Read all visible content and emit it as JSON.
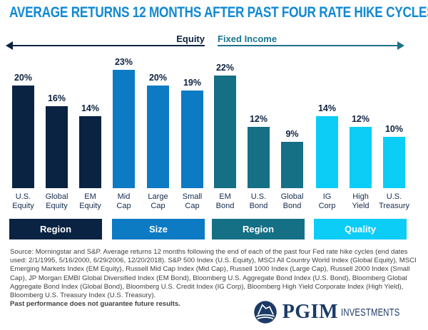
{
  "header": {
    "title": "AVERAGE RETURNS 12 MONTHS AFTER PAST FOUR RATE HIKE CYCLES ENDED",
    "title_color": "#1089d2"
  },
  "sections": {
    "equity": {
      "label": "Equity",
      "color": "#0b2342",
      "arrow_direction": "left"
    },
    "fixed_income": {
      "label": "Fixed Income",
      "color": "#1a7693",
      "arrow_direction": "right"
    }
  },
  "chart_data": {
    "type": "bar",
    "title": "AVERAGE RETURNS 12 MONTHS AFTER PAST FOUR RATE HIKE CYCLES ENDED",
    "unit": "%",
    "ylim": [
      0,
      24
    ],
    "grid": false,
    "value_labels_position": "above-bars",
    "categories": [
      "U.S. Equity",
      "Global Equity",
      "EM Equity",
      "Mid Cap",
      "Large Cap",
      "Small Cap",
      "EM Bond",
      "U.S. Bond",
      "Global Bond",
      "IG Corp",
      "High Yield",
      "U.S. Treasury"
    ],
    "values": [
      20,
      16,
      14,
      23,
      20,
      19,
      22,
      12,
      9,
      14,
      12,
      10
    ],
    "groups": [
      {
        "section": "Equity",
        "ribbon": "Region",
        "color": "#0b2342",
        "bars": [
          {
            "label": "U.S. Equity",
            "label_lines": [
              "U.S.",
              "Equity"
            ],
            "value": 20
          },
          {
            "label": "Global Equity",
            "label_lines": [
              "Global",
              "Equity"
            ],
            "value": 16
          },
          {
            "label": "EM Equity",
            "label_lines": [
              "EM",
              "Equity"
            ],
            "value": 14
          }
        ]
      },
      {
        "section": "Equity",
        "ribbon": "Size",
        "color": "#0d7ac4",
        "bars": [
          {
            "label": "Mid Cap",
            "label_lines": [
              "Mid",
              "Cap"
            ],
            "value": 23
          },
          {
            "label": "Large Cap",
            "label_lines": [
              "Large",
              "Cap"
            ],
            "value": 20
          },
          {
            "label": "Small Cap",
            "label_lines": [
              "Small",
              "Cap"
            ],
            "value": 19
          }
        ]
      },
      {
        "section": "Fixed Income",
        "ribbon": "Region",
        "color": "#156f85",
        "bars": [
          {
            "label": "EM Bond",
            "label_lines": [
              "EM",
              "Bond"
            ],
            "value": 22
          },
          {
            "label": "U.S. Bond",
            "label_lines": [
              "U.S.",
              "Bond"
            ],
            "value": 12
          },
          {
            "label": "Global Bond",
            "label_lines": [
              "Global",
              "Bond"
            ],
            "value": 9
          }
        ]
      },
      {
        "section": "Fixed Income",
        "ribbon": "Quality",
        "color": "#0bcdf6",
        "bars": [
          {
            "label": "IG Corp",
            "label_lines": [
              "IG",
              "Corp"
            ],
            "value": 14
          },
          {
            "label": "High Yield",
            "label_lines": [
              "High",
              "Yield"
            ],
            "value": 12
          },
          {
            "label": "U.S. Treasury",
            "label_lines": [
              "U.S.",
              "Treasury"
            ],
            "value": 10
          }
        ]
      }
    ]
  },
  "footer": {
    "source": "Source: Morningstar and S&P. Average returns 12 months following the end of each of the past four Fed rate hike cycles (end dates used: 2/1/1995, 5/16/2000, 6/29/2006, 12/20/2018). S&P 500 Index (U.S. Equity), MSCI All Country World Index (Global Equity), MSCI Emerging Markets Index (EM Equity), Russell Mid Cap Index (Mid Cap), Russell 1000 Index (Large Cap), Russell 2000 Index (Small Cap), JP Morgan EMBI Global Diversified Index (EM Bond), Bloomberg U.S. Aggregate Bond Index (U.S. Bond), Bloomberg Global Aggregate Bond Index (Global Bond), Bloomberg U.S. Credit Index (IG Corp), Bloomberg High Yield Corporate Index (High Yield), Bloomberg U.S. Treasury Index (U.S. Treasury).",
    "disclaimer": "Past performance does not guarantee future results."
  },
  "logo": {
    "brand": "PGIM",
    "suffix": "INVESTMENTS",
    "icon": "prudential-rock-icon",
    "color": "#1b3a66"
  }
}
